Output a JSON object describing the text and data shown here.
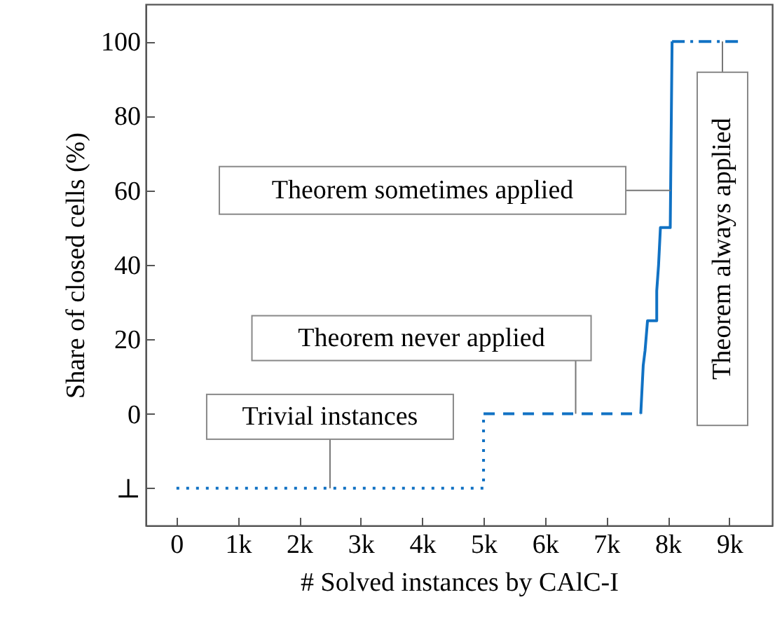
{
  "chart_data": {
    "type": "line",
    "xlabel": "# Solved instances by CAlC-I",
    "ylabel": "Share of closed cells (%)",
    "xlim": [
      -500,
      9700
    ],
    "ylim": [
      -30,
      110
    ],
    "xticks": [
      0,
      {
        "value": 1000,
        "label": "1k"
      },
      {
        "value": 2000,
        "label": "2k"
      },
      {
        "value": 3000,
        "label": "3k"
      },
      {
        "value": 4000,
        "label": "4k"
      },
      {
        "value": 5000,
        "label": "5k"
      },
      {
        "value": 6000,
        "label": "6k"
      },
      {
        "value": 7000,
        "label": "7k"
      },
      {
        "value": 8000,
        "label": "8k"
      },
      {
        "value": 9000,
        "label": "9k"
      }
    ],
    "yticks": [
      {
        "value": -20,
        "label": "⊥"
      },
      0,
      20,
      40,
      60,
      80,
      100
    ],
    "series": [
      {
        "color": "#1172c4",
        "line_style": "dotted",
        "x": [
          0,
          5000,
          5000
        ],
        "values": [
          -20,
          -20,
          0
        ]
      },
      {
        "color": "#1172c4",
        "line_style": "dashed",
        "x": [
          5000,
          7560
        ],
        "values": [
          0,
          0
        ]
      },
      {
        "color": "#1172c4",
        "line_style": "solid",
        "x": [
          7560,
          7600,
          7630,
          7670,
          7820,
          7820,
          7850,
          7880,
          8040,
          8050,
          8070
        ],
        "values": [
          0,
          13,
          17,
          25,
          25,
          33,
          40,
          50,
          50,
          67,
          100
        ]
      },
      {
        "color": "#1172c4",
        "line_style": "dashdot",
        "x": [
          8070,
          9190
        ],
        "values": [
          100,
          100
        ]
      }
    ],
    "annotations": [
      {
        "text": "Trivial instances",
        "x": 2500,
        "y": -20
      },
      {
        "text": "Theorem never applied",
        "x": 6500,
        "y": 0
      },
      {
        "text": "Theorem sometimes applied",
        "x": 8046,
        "y": 60
      },
      {
        "text": "Theorem always applied",
        "x": 8890,
        "y": 100
      }
    ]
  }
}
